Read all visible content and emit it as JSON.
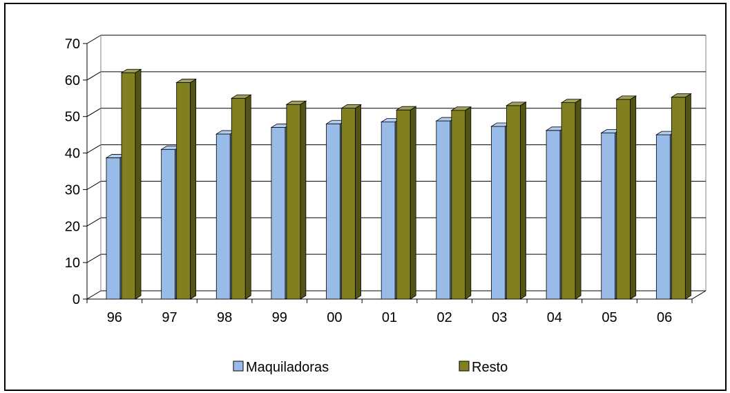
{
  "chart_data": {
    "type": "bar",
    "categories": [
      "96",
      "97",
      "98",
      "99",
      "00",
      "01",
      "02",
      "03",
      "04",
      "05",
      "06"
    ],
    "series": [
      {
        "name": "Maquiladoras",
        "values": [
          38.7,
          41.0,
          45.2,
          47.0,
          48.0,
          48.5,
          48.8,
          47.3,
          46.2,
          45.5,
          45.0
        ],
        "color": "#99bbe8"
      },
      {
        "name": "Resto",
        "values": [
          62.0,
          59.3,
          55.0,
          53.3,
          52.3,
          51.8,
          51.7,
          53.0,
          53.8,
          54.7,
          55.3
        ],
        "color": "#808020"
      }
    ],
    "ylim": [
      0,
      70
    ],
    "yticks": [
      "0",
      "10",
      "20",
      "30",
      "40",
      "50",
      "60",
      "70"
    ],
    "grid": true,
    "legend": "bottom",
    "title": "",
    "xlabel": "",
    "ylabel": ""
  }
}
